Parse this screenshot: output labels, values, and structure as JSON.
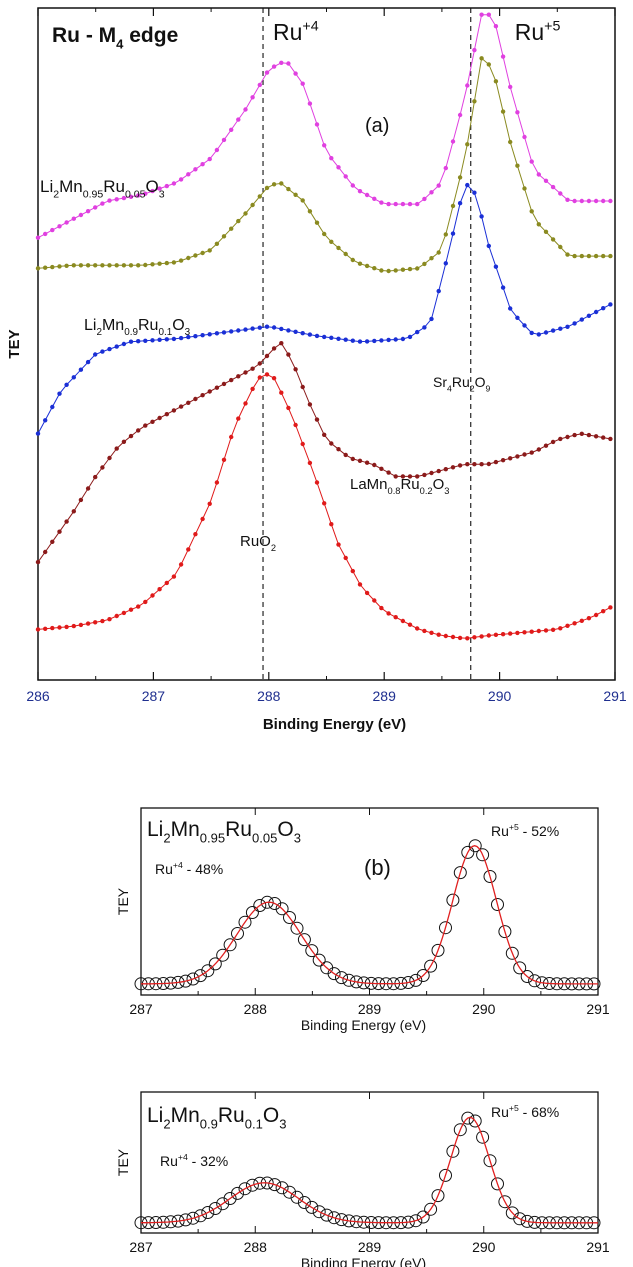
{
  "chart_data": [
    {
      "type": "line",
      "panel_tag": "(a)",
      "title": "Ru - M",
      "title_sub": "4",
      "title_tail": " edge",
      "xlabel": "Binding Energy (eV)",
      "ylabel": "TEY",
      "xlim": [
        286,
        291
      ],
      "xticks": [
        "286",
        "287",
        "288",
        "289",
        "290",
        "291"
      ],
      "reference_lines": [
        {
          "x": 287.95,
          "label": "Ru",
          "sup": "+4"
        },
        {
          "x": 289.75,
          "label": "Ru",
          "sup": "+5"
        }
      ],
      "series": [
        {
          "key": "li95",
          "color": "#e040e0",
          "label_parts": [
            [
              "Li",
              ""
            ],
            [
              "2",
              "sub"
            ],
            [
              "Mn",
              ""
            ],
            [
              "0.95",
              "sub"
            ],
            [
              "Ru",
              ""
            ],
            [
              "0.05",
              "sub"
            ],
            [
              "O",
              ""
            ],
            [
              "3",
              "sub"
            ]
          ],
          "x": [
            286.0,
            286.3,
            286.6,
            286.9,
            287.2,
            287.5,
            287.8,
            288.0,
            288.15,
            288.3,
            288.5,
            288.75,
            289.0,
            289.3,
            289.5,
            289.7,
            289.85,
            289.95,
            290.1,
            290.3,
            290.6,
            291.0
          ],
          "y": [
            0.69,
            0.72,
            0.75,
            0.76,
            0.78,
            0.82,
            0.9,
            0.965,
            0.98,
            0.94,
            0.83,
            0.77,
            0.745,
            0.745,
            0.78,
            0.92,
            1.06,
            1.05,
            0.93,
            0.8,
            0.75,
            0.75
          ]
        },
        {
          "key": "li9",
          "color": "#8a8a20",
          "label_parts": [
            [
              "Li",
              ""
            ],
            [
              "2",
              "sub"
            ],
            [
              "Mn",
              ""
            ],
            [
              "0.9",
              "sub"
            ],
            [
              "Ru",
              ""
            ],
            [
              "0.1",
              "sub"
            ],
            [
              "O",
              ""
            ],
            [
              "3",
              "sub"
            ]
          ],
          "x": [
            286.0,
            286.3,
            286.6,
            286.9,
            287.2,
            287.5,
            287.8,
            288.0,
            288.1,
            288.3,
            288.5,
            288.75,
            289.0,
            289.3,
            289.5,
            289.7,
            289.85,
            289.95,
            290.1,
            290.3,
            290.6,
            291.0
          ],
          "y": [
            0.64,
            0.645,
            0.645,
            0.645,
            0.65,
            0.67,
            0.73,
            0.775,
            0.78,
            0.75,
            0.69,
            0.65,
            0.635,
            0.64,
            0.67,
            0.82,
            0.99,
            0.96,
            0.84,
            0.72,
            0.66,
            0.66
          ]
        },
        {
          "key": "sr",
          "color": "#1a2fd6",
          "label_parts": [
            [
              "Sr",
              ""
            ],
            [
              "4",
              "sub"
            ],
            [
              "Ru",
              ""
            ],
            [
              "2",
              "sub"
            ],
            [
              "O",
              ""
            ],
            [
              "9",
              "sub"
            ]
          ],
          "x": [
            286.0,
            286.2,
            286.5,
            286.8,
            287.2,
            287.6,
            288.0,
            288.4,
            288.8,
            289.2,
            289.4,
            289.55,
            289.7,
            289.8,
            289.9,
            290.1,
            290.3,
            290.6,
            291.0
          ],
          "y": [
            0.37,
            0.44,
            0.5,
            0.52,
            0.525,
            0.535,
            0.545,
            0.53,
            0.52,
            0.525,
            0.55,
            0.66,
            0.78,
            0.76,
            0.68,
            0.57,
            0.53,
            0.545,
            0.585
          ]
        },
        {
          "key": "la",
          "color": "#8b1a1a",
          "label_parts": [
            [
              "LaMn",
              ""
            ],
            [
              "0.8",
              "sub"
            ],
            [
              "Ru",
              ""
            ],
            [
              "0.2",
              "sub"
            ],
            [
              "O",
              ""
            ],
            [
              "3",
              "sub"
            ]
          ],
          "x": [
            286.0,
            286.15,
            286.3,
            286.5,
            286.7,
            286.9,
            287.1,
            287.3,
            287.5,
            287.7,
            287.9,
            288.0,
            288.1,
            288.2,
            288.35,
            288.5,
            288.7,
            288.9,
            289.1,
            289.3,
            289.5,
            289.7,
            289.9,
            290.1,
            290.3,
            290.5,
            290.7,
            291.0
          ],
          "y": [
            0.16,
            0.2,
            0.24,
            0.3,
            0.35,
            0.38,
            0.4,
            0.42,
            0.44,
            0.46,
            0.48,
            0.5,
            0.52,
            0.49,
            0.42,
            0.36,
            0.33,
            0.32,
            0.3,
            0.3,
            0.31,
            0.32,
            0.32,
            0.33,
            0.34,
            0.36,
            0.37,
            0.36
          ]
        },
        {
          "key": "ruo2",
          "color": "#e01a1a",
          "label_parts": [
            [
              "RuO",
              ""
            ],
            [
              "2",
              "sub"
            ]
          ],
          "x": [
            286.0,
            286.3,
            286.6,
            286.9,
            287.2,
            287.5,
            287.7,
            287.85,
            287.95,
            288.05,
            288.2,
            288.4,
            288.6,
            288.8,
            289.0,
            289.3,
            289.5,
            289.7,
            289.9,
            290.2,
            290.5,
            290.8,
            291.0
          ],
          "y": [
            0.05,
            0.055,
            0.065,
            0.09,
            0.14,
            0.26,
            0.38,
            0.44,
            0.47,
            0.46,
            0.4,
            0.3,
            0.19,
            0.12,
            0.08,
            0.05,
            0.04,
            0.035,
            0.04,
            0.045,
            0.05,
            0.07,
            0.09
          ]
        }
      ]
    },
    {
      "type": "scatter",
      "panel_tag": "(b)",
      "title_parts": [
        [
          "Li",
          ""
        ],
        [
          "2",
          "sub"
        ],
        [
          "Mn",
          ""
        ],
        [
          "0.95",
          "sub"
        ],
        [
          "Ru",
          ""
        ],
        [
          "0.05",
          "sub"
        ],
        [
          "O",
          ""
        ],
        [
          "3",
          "sub"
        ]
      ],
      "xlabel": "Binding Energy (eV)",
      "ylabel": "TEY",
      "xlim": [
        287,
        291
      ],
      "xticks": [
        "287",
        "288",
        "289",
        "290",
        "291"
      ],
      "annotations": [
        {
          "text": "Ru",
          "sup": "+4",
          "tail": " - 48%"
        },
        {
          "text": "Ru",
          "sup": "+5",
          "tail": " - 52%"
        }
      ],
      "peaks": {
        "base": 0.02,
        "a1": 0.52,
        "c1": 288.12,
        "w1": 0.28,
        "a2": 0.88,
        "c2": 289.92,
        "w2": 0.19
      },
      "series": [
        {
          "name": "",
          "kind": "data",
          "color": "#111111"
        },
        {
          "name": "",
          "kind": "fit",
          "color": "#e02020"
        }
      ]
    },
    {
      "type": "scatter",
      "panel_tag": "",
      "title_parts": [
        [
          "Li",
          ""
        ],
        [
          "2",
          "sub"
        ],
        [
          "Mn",
          ""
        ],
        [
          "0.9",
          "sub"
        ],
        [
          "Ru",
          ""
        ],
        [
          "0.1",
          "sub"
        ],
        [
          "O",
          ""
        ],
        [
          "3",
          "sub"
        ]
      ],
      "xlabel": "Binding Energy (eV)",
      "ylabel": "TEY",
      "xlim": [
        287,
        291
      ],
      "xticks": [
        "287",
        "288",
        "289",
        "290",
        "291"
      ],
      "annotations": [
        {
          "text": "Ru",
          "sup": "+4",
          "tail": " - 32%"
        },
        {
          "text": "Ru",
          "sup": "+5",
          "tail": " - 68%"
        }
      ],
      "peaks": {
        "base": 0.02,
        "a1": 0.36,
        "c1": 288.08,
        "w1": 0.3,
        "a2": 0.95,
        "c2": 289.88,
        "w2": 0.17
      },
      "series": [
        {
          "name": "",
          "kind": "data",
          "color": "#111111"
        },
        {
          "name": "",
          "kind": "fit",
          "color": "#e02020"
        }
      ]
    }
  ]
}
